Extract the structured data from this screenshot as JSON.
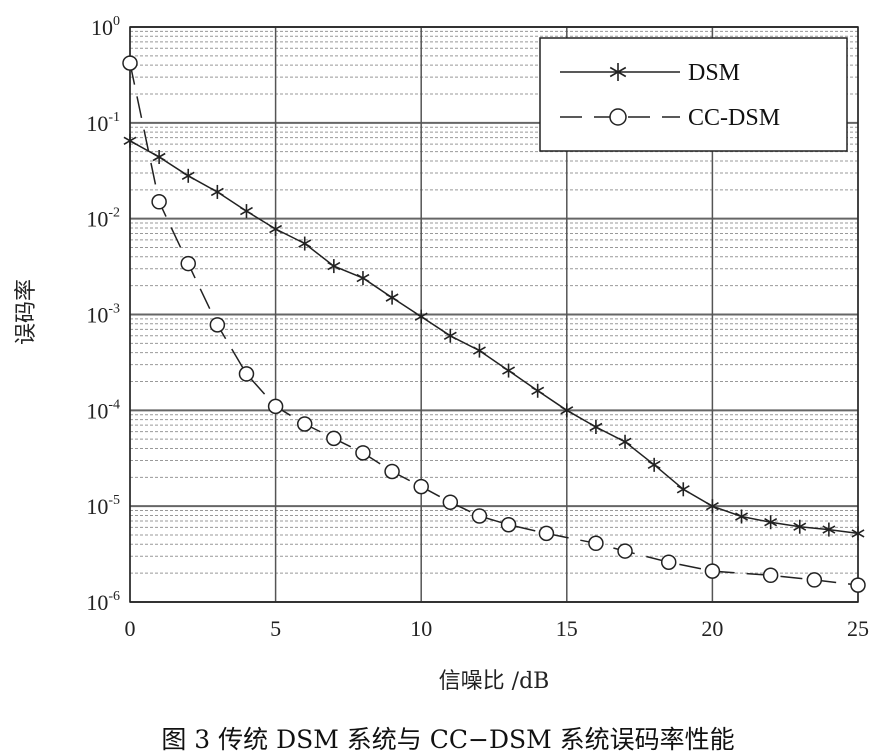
{
  "chart_data": {
    "type": "line",
    "x_scale": "linear",
    "y_scale": "log",
    "xlim": [
      0,
      25
    ],
    "ylim": [
      1e-06,
      1
    ],
    "xticks": [
      0,
      5,
      10,
      15,
      20,
      25
    ],
    "yticks": [
      {
        "base": "10",
        "exp": "0"
      },
      {
        "base": "10",
        "exp": "-1"
      },
      {
        "base": "10",
        "exp": "-2"
      },
      {
        "base": "10",
        "exp": "-3"
      },
      {
        "base": "10",
        "exp": "-4"
      },
      {
        "base": "10",
        "exp": "-5"
      },
      {
        "base": "10",
        "exp": "-6"
      }
    ],
    "xlabel": "信噪比 /dB",
    "ylabel": "误码率",
    "grid": true,
    "legend_position": "top-right",
    "series": [
      {
        "name": "DSM",
        "marker": "asterisk",
        "line": "solid",
        "color": "#222222",
        "x": [
          0,
          1,
          2,
          3,
          4,
          5,
          6,
          7,
          8,
          9,
          10,
          11,
          12,
          13,
          14,
          15,
          16,
          17,
          18,
          19,
          20,
          21,
          22,
          23,
          24,
          25
        ],
        "y": [
          0.065,
          0.044,
          0.028,
          0.019,
          0.012,
          0.0078,
          0.0055,
          0.0032,
          0.0024,
          0.0015,
          0.00095,
          0.0006,
          0.00042,
          0.00026,
          0.00016,
          0.0001,
          6.7e-05,
          4.7e-05,
          2.7e-05,
          1.5e-05,
          1e-05,
          7.8e-06,
          6.8e-06,
          6.1e-06,
          5.7e-06,
          5.2e-06
        ]
      },
      {
        "name": "CC-DSM",
        "marker": "circle",
        "line": "dashed",
        "color": "#222222",
        "x": [
          0,
          1,
          2,
          3,
          4,
          5,
          6,
          7,
          8,
          9,
          10,
          11,
          12,
          13,
          14.3,
          16,
          17,
          18.5,
          20,
          22,
          23.5,
          25
        ],
        "y": [
          0.42,
          0.015,
          0.0034,
          0.00078,
          0.00024,
          0.00011,
          7.2e-05,
          5.1e-05,
          3.6e-05,
          2.3e-05,
          1.6e-05,
          1.1e-05,
          7.9e-06,
          6.4e-06,
          5.2e-06,
          4.1e-06,
          3.4e-06,
          2.6e-06,
          2.1e-06,
          1.9e-06,
          1.7e-06,
          1.5e-06
        ]
      }
    ]
  },
  "caption": "图 3   传统 DSM 系统与 CC−DSM 系统误码率性能"
}
